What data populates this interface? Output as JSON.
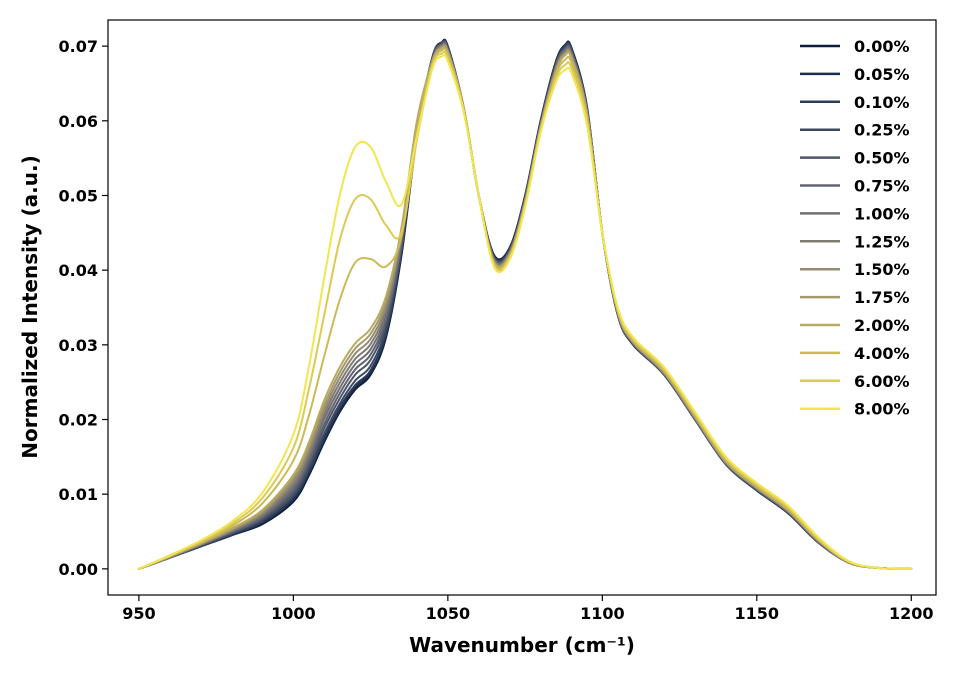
{
  "chart_data": {
    "type": "line",
    "title": "",
    "xlabel": "Wavenumber (cm⁻¹)",
    "ylabel": "Normalized Intensity (a.u.)",
    "xlim": [
      940,
      1208
    ],
    "ylim": [
      -0.0035,
      0.0735
    ],
    "xticks": [
      950,
      1000,
      1050,
      1100,
      1150,
      1200
    ],
    "yticks": [
      0.0,
      0.01,
      0.02,
      0.03,
      0.04,
      0.05,
      0.06,
      0.07
    ],
    "ytick_labels": [
      "0.00",
      "0.01",
      "0.02",
      "0.03",
      "0.04",
      "0.05",
      "0.06",
      "0.07"
    ],
    "grid": false,
    "legend_position": "top-right",
    "x": [
      950,
      960,
      970,
      980,
      990,
      1000,
      1005,
      1010,
      1015,
      1020,
      1025,
      1030,
      1035,
      1040,
      1045,
      1048,
      1050,
      1055,
      1060,
      1065,
      1070,
      1075,
      1080,
      1085,
      1088,
      1090,
      1095,
      1100,
      1105,
      1110,
      1120,
      1130,
      1140,
      1150,
      1160,
      1170,
      1180,
      1190,
      1200
    ],
    "series": [
      {
        "name": "0.00%",
        "color": "#0d1f3c",
        "values": [
          0.0,
          0.0015,
          0.003,
          0.0045,
          0.006,
          0.009,
          0.0125,
          0.017,
          0.021,
          0.024,
          0.026,
          0.031,
          0.042,
          0.058,
          0.0685,
          0.0705,
          0.07,
          0.062,
          0.05,
          0.042,
          0.043,
          0.05,
          0.06,
          0.068,
          0.0702,
          0.0698,
          0.062,
          0.045,
          0.034,
          0.03,
          0.026,
          0.02,
          0.014,
          0.0105,
          0.0075,
          0.0035,
          0.0008,
          0.0001,
          0.0
        ]
      },
      {
        "name": "0.05%",
        "color": "#1c2f4f",
        "values": [
          0.0,
          0.0015,
          0.003,
          0.0045,
          0.0062,
          0.0093,
          0.0128,
          0.0173,
          0.0213,
          0.0243,
          0.0263,
          0.0313,
          0.0422,
          0.0582,
          0.0685,
          0.0705,
          0.0699,
          0.062,
          0.05,
          0.0419,
          0.0429,
          0.0499,
          0.0599,
          0.0679,
          0.0701,
          0.0697,
          0.0619,
          0.045,
          0.034,
          0.03,
          0.026,
          0.02,
          0.014,
          0.0105,
          0.0075,
          0.0035,
          0.0008,
          0.0001,
          0.0
        ]
      },
      {
        "name": "0.10%",
        "color": "#2b3c59",
        "values": [
          0.0,
          0.0015,
          0.003,
          0.0046,
          0.0063,
          0.0095,
          0.013,
          0.0176,
          0.0216,
          0.0246,
          0.0266,
          0.0316,
          0.0424,
          0.0583,
          0.0685,
          0.0704,
          0.0699,
          0.062,
          0.05,
          0.0418,
          0.0428,
          0.0498,
          0.0598,
          0.0678,
          0.07,
          0.0696,
          0.0618,
          0.045,
          0.034,
          0.03,
          0.026,
          0.02,
          0.014,
          0.0105,
          0.0075,
          0.0035,
          0.0008,
          0.0001,
          0.0
        ]
      },
      {
        "name": "0.25%",
        "color": "#3c4961",
        "values": [
          0.0,
          0.0015,
          0.0031,
          0.0047,
          0.0065,
          0.0098,
          0.0134,
          0.0181,
          0.0221,
          0.0252,
          0.0272,
          0.0322,
          0.0428,
          0.0585,
          0.0684,
          0.0704,
          0.0698,
          0.062,
          0.05,
          0.0417,
          0.0427,
          0.0497,
          0.0597,
          0.0677,
          0.0699,
          0.0695,
          0.0617,
          0.045,
          0.0341,
          0.0301,
          0.026,
          0.02,
          0.014,
          0.0106,
          0.0076,
          0.0035,
          0.0008,
          0.0001,
          0.0
        ]
      },
      {
        "name": "0.50%",
        "color": "#4e5668",
        "values": [
          0.0,
          0.0015,
          0.0031,
          0.0048,
          0.0067,
          0.0102,
          0.0139,
          0.0188,
          0.0228,
          0.026,
          0.028,
          0.0329,
          0.0433,
          0.0588,
          0.0683,
          0.0703,
          0.0697,
          0.062,
          0.05,
          0.0416,
          0.0426,
          0.0496,
          0.0596,
          0.0675,
          0.0697,
          0.0693,
          0.0616,
          0.045,
          0.0341,
          0.0301,
          0.0261,
          0.0201,
          0.0141,
          0.0106,
          0.0076,
          0.0036,
          0.0008,
          0.0001,
          0.0
        ]
      },
      {
        "name": "0.75%",
        "color": "#606370",
        "values": [
          0.0,
          0.0015,
          0.0032,
          0.0049,
          0.0069,
          0.0106,
          0.0144,
          0.0194,
          0.0235,
          0.0267,
          0.0287,
          0.0335,
          0.0437,
          0.059,
          0.0683,
          0.0702,
          0.0696,
          0.062,
          0.05,
          0.0415,
          0.0425,
          0.0495,
          0.0595,
          0.0674,
          0.0696,
          0.0692,
          0.0615,
          0.045,
          0.0342,
          0.0302,
          0.0261,
          0.0201,
          0.0141,
          0.0107,
          0.0077,
          0.0036,
          0.0008,
          0.0001,
          0.0
        ]
      },
      {
        "name": "1.00%",
        "color": "#707075",
        "values": [
          0.0,
          0.0016,
          0.0032,
          0.005,
          0.0071,
          0.011,
          0.0149,
          0.0201,
          0.0242,
          0.0274,
          0.0294,
          0.0341,
          0.0441,
          0.0592,
          0.0682,
          0.0701,
          0.0695,
          0.062,
          0.05,
          0.0414,
          0.0424,
          0.0494,
          0.0594,
          0.0672,
          0.0694,
          0.069,
          0.0614,
          0.045,
          0.0342,
          0.0302,
          0.0262,
          0.0202,
          0.0142,
          0.0107,
          0.0077,
          0.0036,
          0.0008,
          0.0001,
          0.0
        ]
      },
      {
        "name": "1.25%",
        "color": "#807c74",
        "values": [
          0.0,
          0.0016,
          0.0033,
          0.0051,
          0.0073,
          0.0114,
          0.0154,
          0.0207,
          0.0249,
          0.0281,
          0.0301,
          0.0347,
          0.0445,
          0.0594,
          0.0681,
          0.07,
          0.0694,
          0.062,
          0.05,
          0.0413,
          0.0423,
          0.0493,
          0.0593,
          0.0671,
          0.0693,
          0.0689,
          0.0613,
          0.045,
          0.0343,
          0.0303,
          0.0262,
          0.0202,
          0.0142,
          0.0108,
          0.0078,
          0.0037,
          0.0008,
          0.0001,
          0.0
        ]
      },
      {
        "name": "1.50%",
        "color": "#938b72",
        "values": [
          0.0,
          0.0016,
          0.0033,
          0.0052,
          0.0075,
          0.0118,
          0.0159,
          0.0213,
          0.0256,
          0.0288,
          0.0308,
          0.0353,
          0.0449,
          0.0596,
          0.068,
          0.0699,
          0.0693,
          0.062,
          0.05,
          0.0412,
          0.0422,
          0.0492,
          0.0592,
          0.0669,
          0.0691,
          0.0687,
          0.0612,
          0.045,
          0.0343,
          0.0303,
          0.0263,
          0.0203,
          0.0143,
          0.0108,
          0.0078,
          0.0037,
          0.0008,
          0.0001,
          0.0
        ]
      },
      {
        "name": "1.75%",
        "color": "#a59a6c",
        "values": [
          0.0,
          0.0016,
          0.0034,
          0.0053,
          0.0077,
          0.0122,
          0.0164,
          0.0219,
          0.0263,
          0.0295,
          0.0315,
          0.0359,
          0.0453,
          0.0598,
          0.068,
          0.0698,
          0.0692,
          0.062,
          0.05,
          0.0411,
          0.0421,
          0.0491,
          0.0591,
          0.0668,
          0.069,
          0.0686,
          0.0611,
          0.045,
          0.0344,
          0.0304,
          0.0263,
          0.0203,
          0.0143,
          0.0109,
          0.0079,
          0.0038,
          0.0009,
          0.0001,
          0.0
        ]
      },
      {
        "name": "2.00%",
        "color": "#b8aa62",
        "values": [
          0.0,
          0.0017,
          0.0034,
          0.0054,
          0.0079,
          0.0126,
          0.0169,
          0.0226,
          0.027,
          0.0302,
          0.0322,
          0.0365,
          0.0457,
          0.06,
          0.0679,
          0.0697,
          0.0691,
          0.062,
          0.05,
          0.041,
          0.042,
          0.049,
          0.059,
          0.0666,
          0.0688,
          0.0684,
          0.061,
          0.045,
          0.0344,
          0.0304,
          0.0264,
          0.0204,
          0.0144,
          0.0109,
          0.0079,
          0.0038,
          0.0009,
          0.0001,
          0.0
        ]
      },
      {
        "name": "4.00%",
        "color": "#ccb957",
        "values": [
          0.0,
          0.0017,
          0.0035,
          0.0057,
          0.0088,
          0.0145,
          0.0205,
          0.0285,
          0.036,
          0.041,
          0.0415,
          0.0405,
          0.0445,
          0.0585,
          0.0676,
          0.0694,
          0.0688,
          0.0618,
          0.05,
          0.0408,
          0.0418,
          0.0488,
          0.0588,
          0.0662,
          0.0682,
          0.0678,
          0.0605,
          0.045,
          0.0346,
          0.0306,
          0.0266,
          0.0206,
          0.0146,
          0.0111,
          0.0081,
          0.0039,
          0.0009,
          0.0001,
          0.0
        ]
      },
      {
        "name": "6.00%",
        "color": "#ddca52",
        "values": [
          0.0,
          0.0018,
          0.0037,
          0.006,
          0.0095,
          0.0162,
          0.024,
          0.034,
          0.044,
          0.0495,
          0.0495,
          0.046,
          0.045,
          0.0575,
          0.0673,
          0.069,
          0.0684,
          0.0616,
          0.05,
          0.0406,
          0.0416,
          0.0486,
          0.0586,
          0.0657,
          0.0675,
          0.0671,
          0.06,
          0.045,
          0.0348,
          0.0308,
          0.0268,
          0.0208,
          0.0148,
          0.0113,
          0.0083,
          0.004,
          0.0009,
          0.0001,
          0.0
        ]
      },
      {
        "name": "8.00%",
        "color": "#f2e54e",
        "values": [
          0.0,
          0.0018,
          0.0038,
          0.0063,
          0.0102,
          0.018,
          0.027,
          0.039,
          0.05,
          0.0565,
          0.0565,
          0.0518,
          0.0488,
          0.058,
          0.067,
          0.0686,
          0.068,
          0.0614,
          0.05,
          0.0404,
          0.0414,
          0.0484,
          0.0584,
          0.0652,
          0.0668,
          0.0664,
          0.0595,
          0.045,
          0.035,
          0.031,
          0.027,
          0.021,
          0.015,
          0.0115,
          0.0085,
          0.0042,
          0.001,
          0.0001,
          0.0
        ]
      }
    ]
  }
}
